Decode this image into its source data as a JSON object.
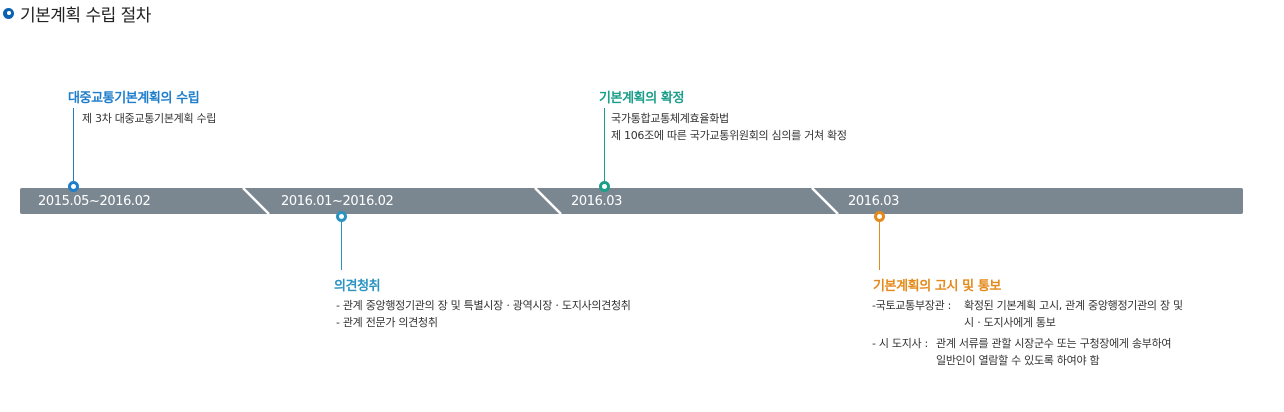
{
  "page": {
    "title": "기본계획 수립 절차"
  },
  "timeline": {
    "dates": [
      "2015.05~2016.02",
      "2016.01~2016.02",
      "2016.03",
      "2016.03"
    ]
  },
  "steps": [
    {
      "title": "대중교통기본계획의 수립",
      "color": "#1f7ecb",
      "lines": [
        "제 3차 대중교통기본계획 수립"
      ]
    },
    {
      "title": "의견청취",
      "color": "#2a93c0",
      "lines": [
        "- 관계 중앙행정기관의 장 및 특별시장ㆍ광역시장ㆍ도지사의견청취",
        "- 관계 전문가 의견청취"
      ]
    },
    {
      "title": "기본계획의 확정",
      "color": "#1b9e8a",
      "lines": [
        "국가통합교통체계효율화법",
        "제 106조에 따른 국가교통위원회의 심의를 거쳐 확정"
      ]
    },
    {
      "title": "기본계획의 고시 및 통보",
      "color": "#e38a1a",
      "items": [
        {
          "label": "-국토교통부장관 :",
          "lines": [
            "확정된 기본계획 고시, 관계 중앙행정기관의 장 및",
            "시ㆍ도지사에게 통보"
          ]
        },
        {
          "label": "- 시 도지사 :",
          "lines": [
            "관계 서류를 관할 시장군수 또는 구청장에게 송부하여",
            "일반인이 열람할 수 있도록 하여야 함"
          ]
        }
      ]
    }
  ]
}
